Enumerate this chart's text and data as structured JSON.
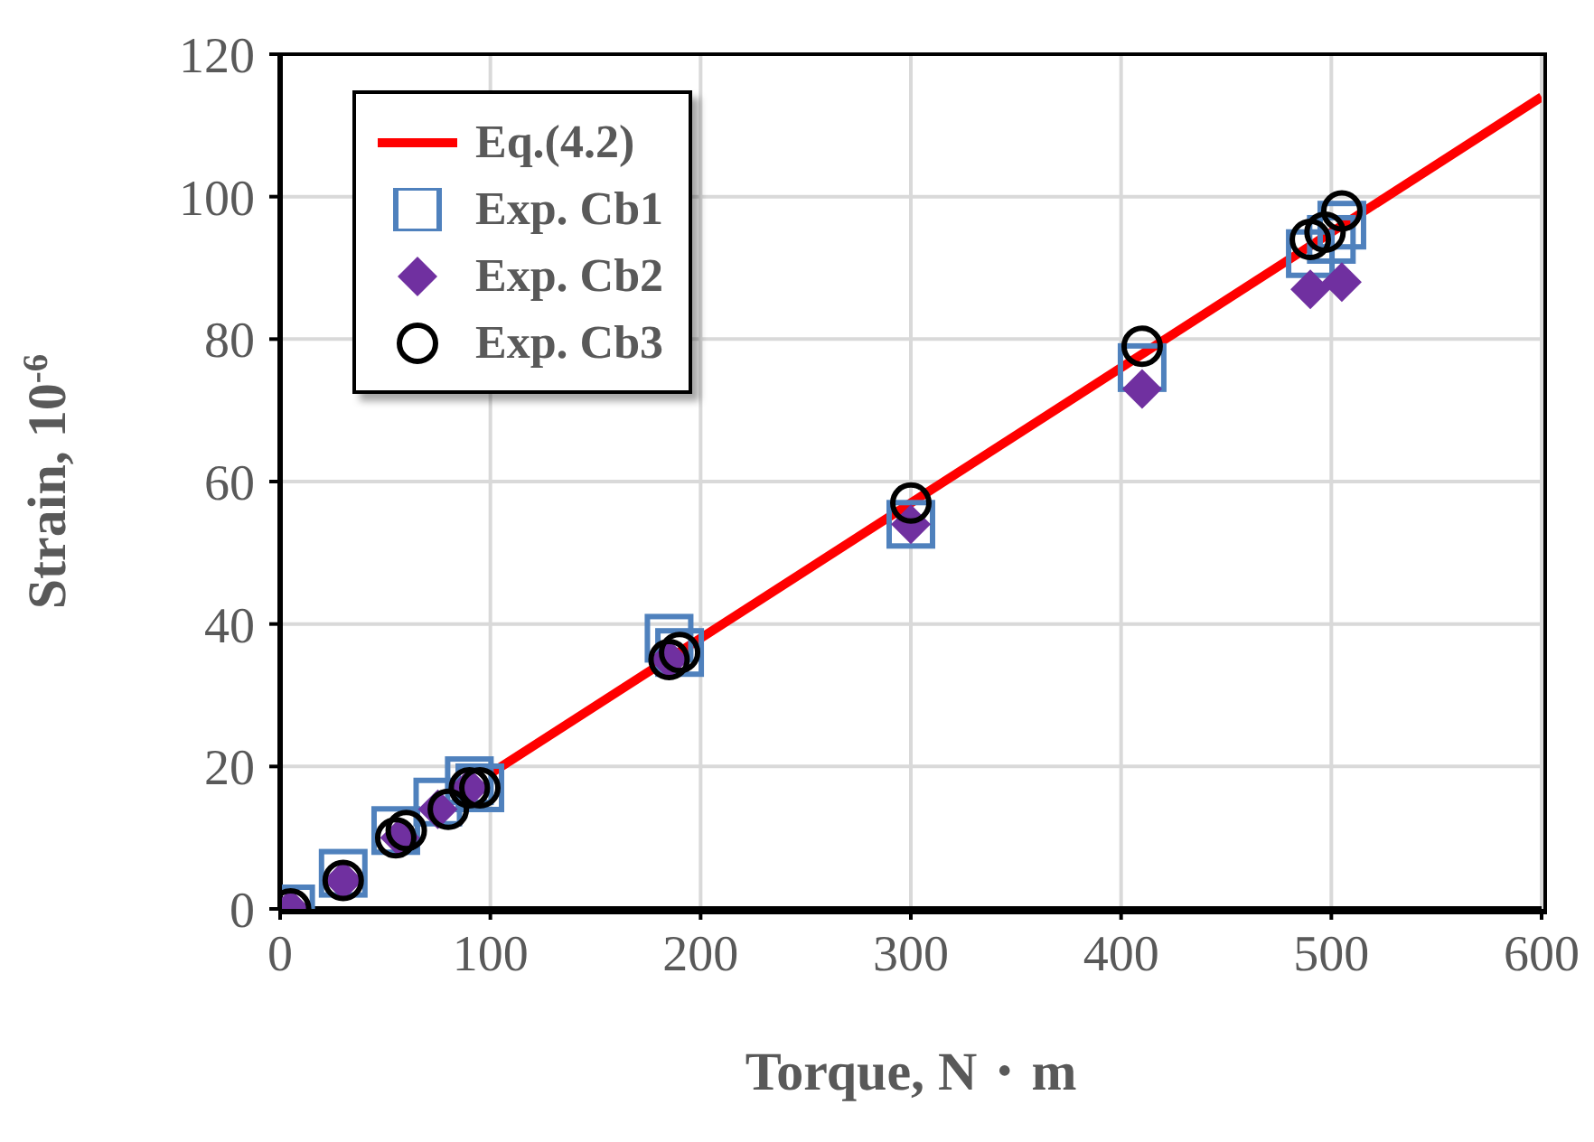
{
  "chart_data": {
    "type": "scatter",
    "xlabel": "Torque, N・m",
    "ylabel": "Strain, 10$^{-6}$",
    "xlim": [
      0,
      600
    ],
    "xticks": [
      0,
      100,
      200,
      300,
      400,
      500,
      600
    ],
    "ylim": [
      0,
      120
    ],
    "yticks": [
      0,
      20,
      40,
      60,
      80,
      100,
      120
    ],
    "grid": true,
    "legend": "top left",
    "series": [
      {
        "name": "Eq.(4.2)",
        "type": "line",
        "color": "#ff0000",
        "line_style": "solid",
        "x": [
          100,
          600
        ],
        "values": [
          19,
          114
        ]
      },
      {
        "name": "Exp. Cb1",
        "color": "#4f81bd",
        "marker": "square",
        "x": [
          5,
          30,
          55,
          75,
          90,
          95,
          185,
          190,
          300,
          410,
          490,
          500,
          505
        ],
        "values": [
          0,
          5,
          11,
          15,
          18,
          17,
          38,
          36,
          54,
          76,
          92,
          94,
          96
        ]
      },
      {
        "name": "Exp. Cb2",
        "type": "scatter",
        "color": "#7030a0",
        "marker": "diamond",
        "x": [
          5,
          30,
          57,
          75,
          90,
          185,
          300,
          410,
          490,
          505
        ],
        "values": [
          0,
          4,
          10,
          14,
          17,
          35,
          54,
          73,
          87,
          88
        ]
      },
      {
        "name": "Exp. Cb3",
        "type": "scatter",
        "color": "#000000",
        "marker": "circle",
        "x": [
          5,
          30,
          55,
          60,
          80,
          90,
          95,
          185,
          190,
          300,
          410,
          490,
          497,
          505
        ],
        "values": [
          0,
          4,
          10,
          11,
          14,
          17,
          17,
          35,
          36,
          57,
          79,
          94,
          95,
          98
        ]
      }
    ]
  }
}
